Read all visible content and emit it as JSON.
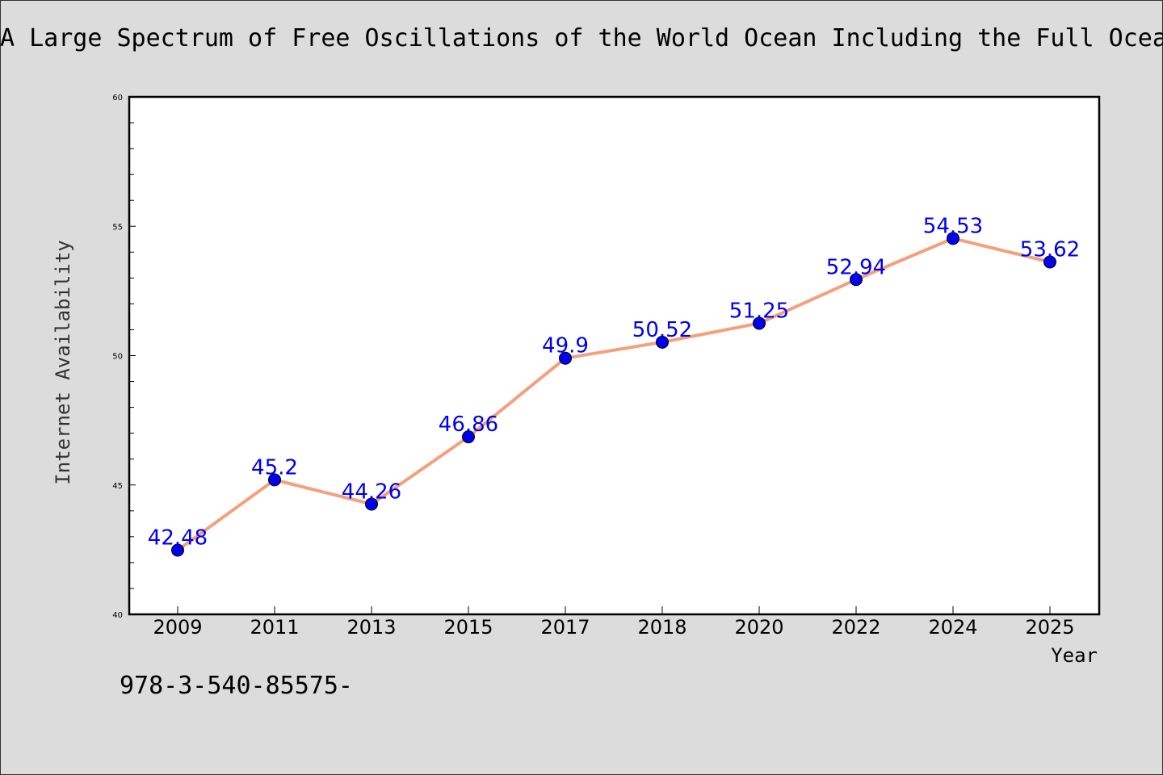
{
  "chart_data": {
    "type": "line",
    "title": "A Large Spectrum of Free Oscillations of the World Ocean Including the Full Ocea",
    "xlabel": "Year",
    "ylabel": "Internet Availability",
    "categories": [
      "2009",
      "2011",
      "2013",
      "2015",
      "2017",
      "2018",
      "2020",
      "2022",
      "2024",
      "2025"
    ],
    "series": [
      {
        "values": [
          42.48,
          45.2,
          44.26,
          46.86,
          49.9,
          50.52,
          51.25,
          52.94,
          54.53,
          53.62
        ],
        "line_color": "#f4a07c",
        "marker_color": "#0000ee"
      }
    ],
    "data_label_color": "#0000ee",
    "ylim": [
      40,
      60
    ],
    "yticks": [
      40,
      45,
      50,
      55,
      60
    ],
    "grid": false,
    "legend": "none"
  },
  "footnote": "978-3-540-85575-"
}
